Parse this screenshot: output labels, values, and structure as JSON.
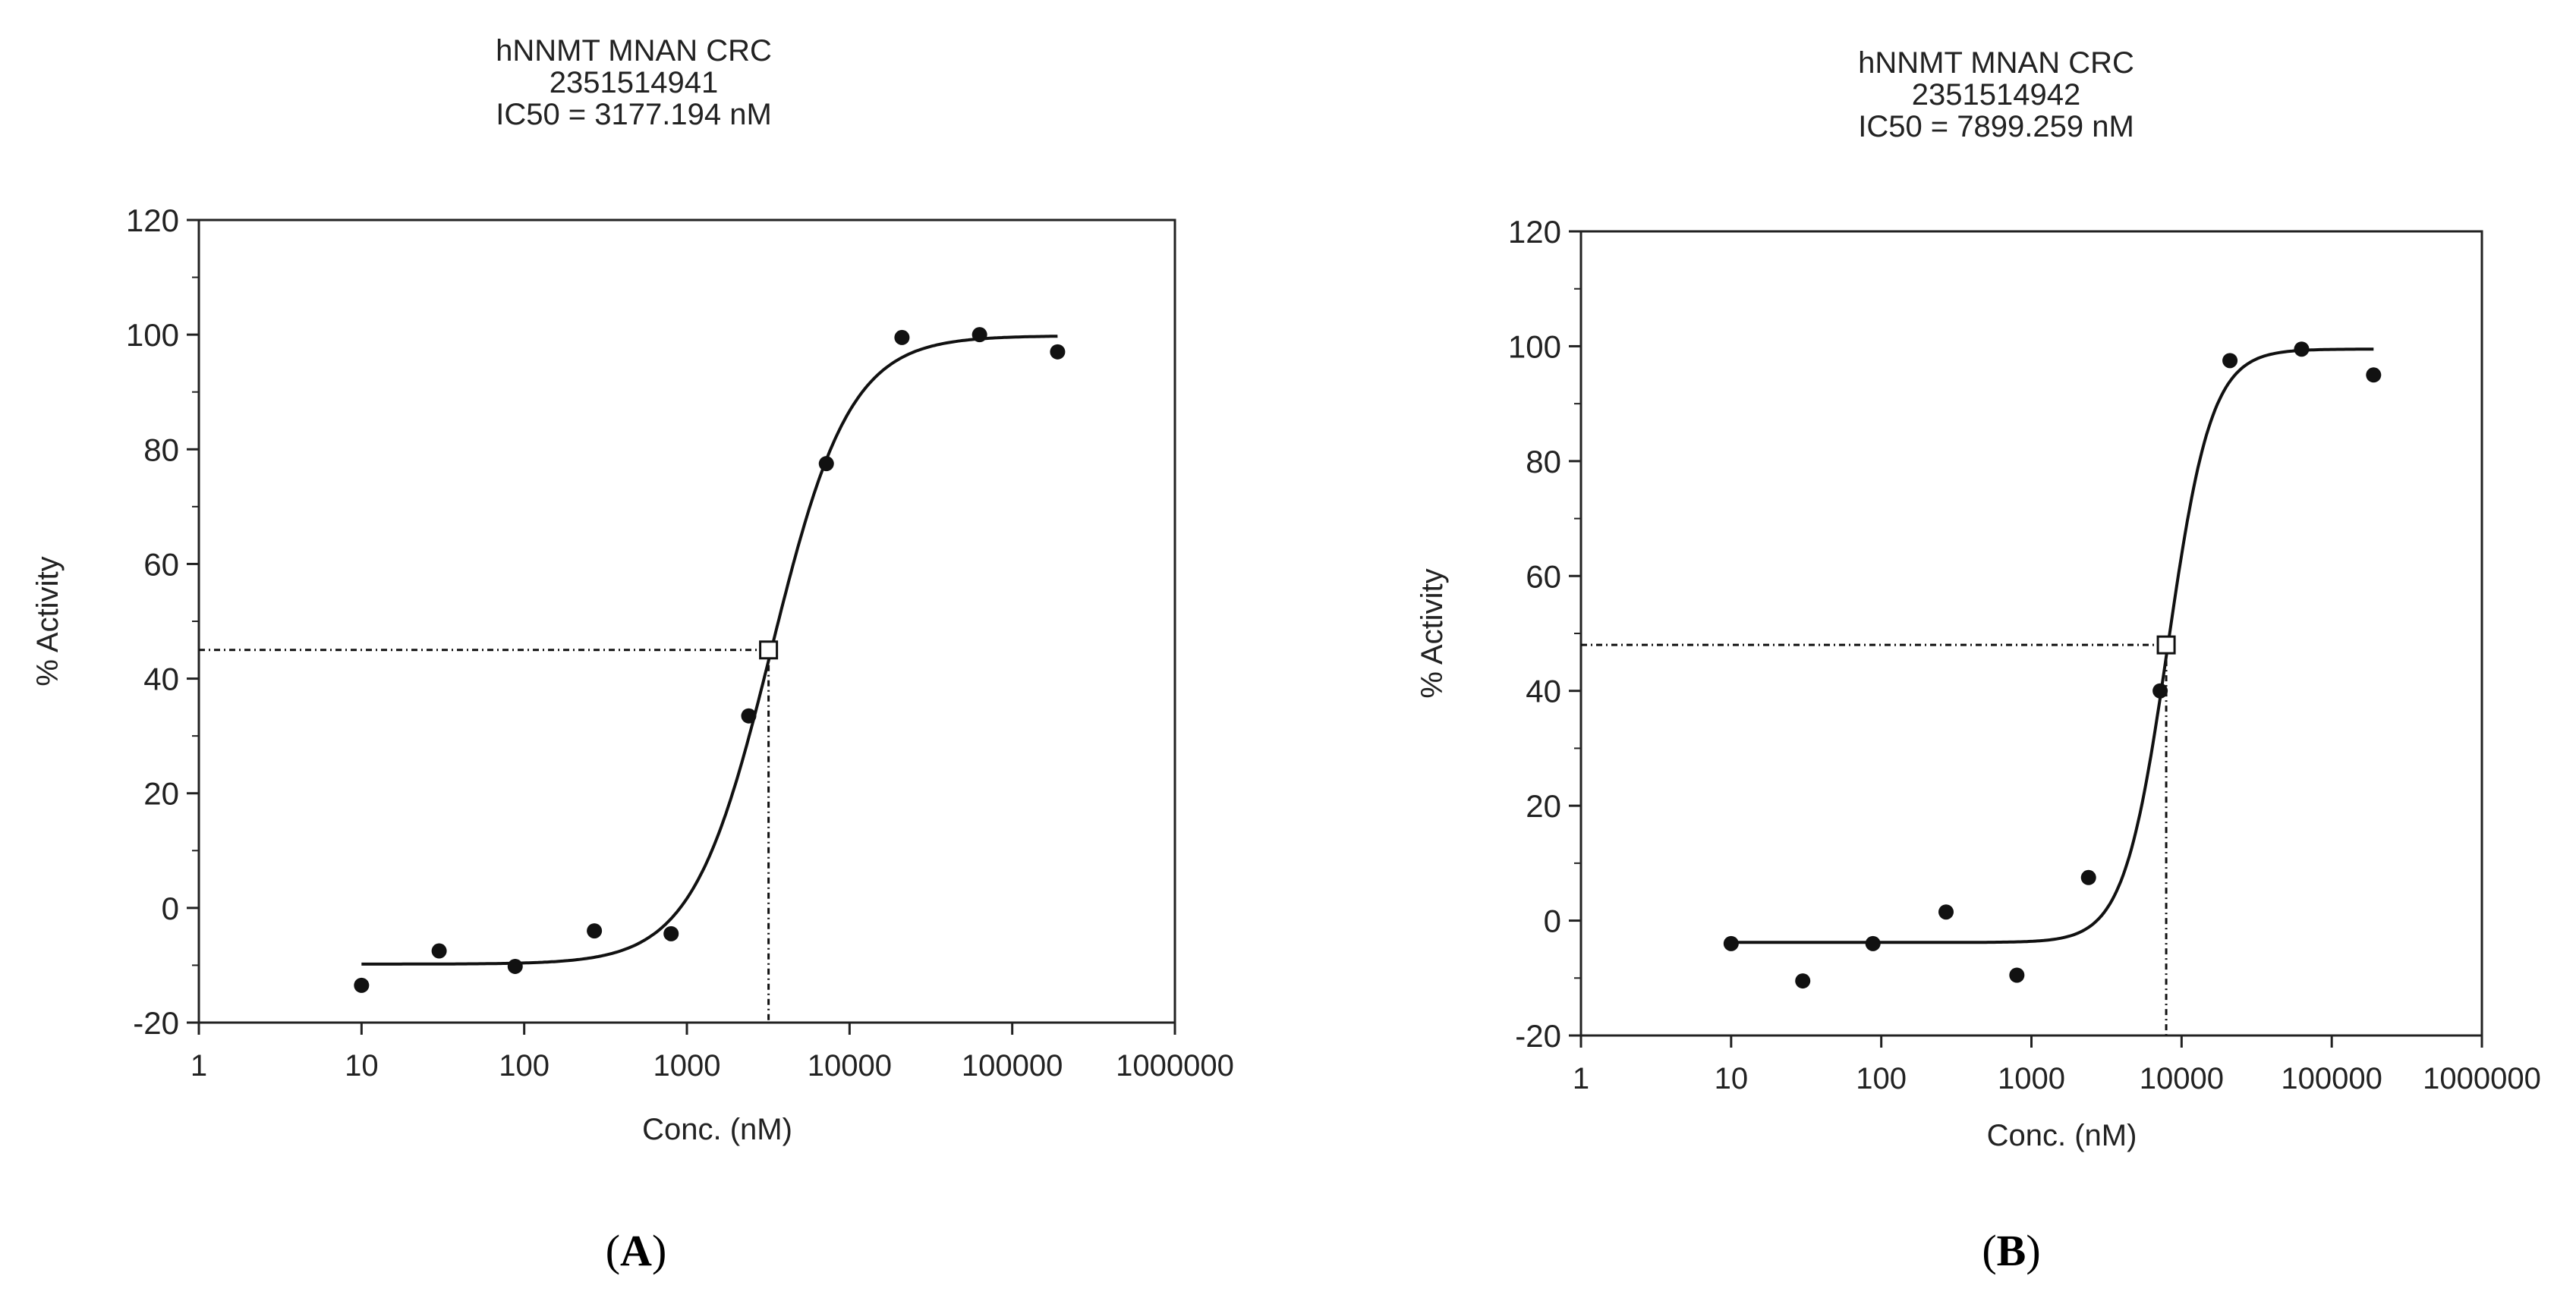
{
  "chart_data": [
    {
      "type": "scatter",
      "panel_label": "A",
      "panel_label_text": "(A)",
      "title": "hNNMT MNAN CRC",
      "subtitle": "2351514941",
      "ic50_label": "IC50 = 3177.194 nM",
      "ic50": 3177.194,
      "xlabel": "Conc. (nM)",
      "ylabel": "% Activity",
      "xscale": "log",
      "xlim": [
        1,
        1000000
      ],
      "ylim": [
        -20,
        120
      ],
      "xticks": [
        1,
        10,
        100,
        1000,
        10000,
        100000,
        1000000
      ],
      "xtick_labels": [
        "1",
        "10",
        "100",
        "1000",
        "10000",
        "100000",
        "1000000"
      ],
      "yticks": [
        -20,
        0,
        20,
        40,
        60,
        80,
        100,
        120
      ],
      "ytick_labels": [
        "-20",
        "0",
        "20",
        "40",
        "60",
        "80",
        "100",
        "120"
      ],
      "points": {
        "x": [
          10,
          30,
          88,
          270,
          800,
          2400,
          7200,
          21000,
          63000,
          190000
        ],
        "y": [
          -13.5,
          -7.5,
          -10.2,
          -4,
          -4.5,
          33.5,
          77.5,
          99.5,
          100,
          97
        ]
      },
      "fit": {
        "bottom": -9.8,
        "top": 99.8,
        "ec50": 3300,
        "hill": 1.8
      },
      "crosshair": {
        "x": 3177.194,
        "y": 45
      }
    },
    {
      "type": "scatter",
      "panel_label": "B",
      "panel_label_text": "(B)",
      "title": "hNNMT MNAN CRC",
      "subtitle": "2351514942",
      "ic50_label": "IC50 = 7899.259 nM",
      "ic50": 7899.259,
      "xlabel": "Conc. (nM)",
      "ylabel": "% Activity",
      "xscale": "log",
      "xlim": [
        1,
        1000000
      ],
      "ylim": [
        -20,
        120
      ],
      "xticks": [
        1,
        10,
        100,
        1000,
        10000,
        100000,
        1000000
      ],
      "xtick_labels": [
        "1",
        "10",
        "100",
        "1000",
        "10000",
        "100000",
        "1000000"
      ],
      "yticks": [
        -20,
        0,
        20,
        40,
        60,
        80,
        100,
        120
      ],
      "ytick_labels": [
        "-20",
        "0",
        "20",
        "40",
        "60",
        "80",
        "100",
        "120"
      ],
      "points": {
        "x": [
          10,
          30,
          88,
          270,
          800,
          2400,
          7200,
          21000,
          63000,
          190000
        ],
        "y": [
          -4,
          -10.5,
          -4,
          1.5,
          -9.5,
          7.5,
          40,
          97.5,
          99.5,
          95
        ]
      },
      "fit": {
        "bottom": -3.8,
        "top": 99.5,
        "ec50": 8100,
        "hill": 3.0
      },
      "crosshair": {
        "x": 7899.259,
        "y": 48
      }
    }
  ]
}
